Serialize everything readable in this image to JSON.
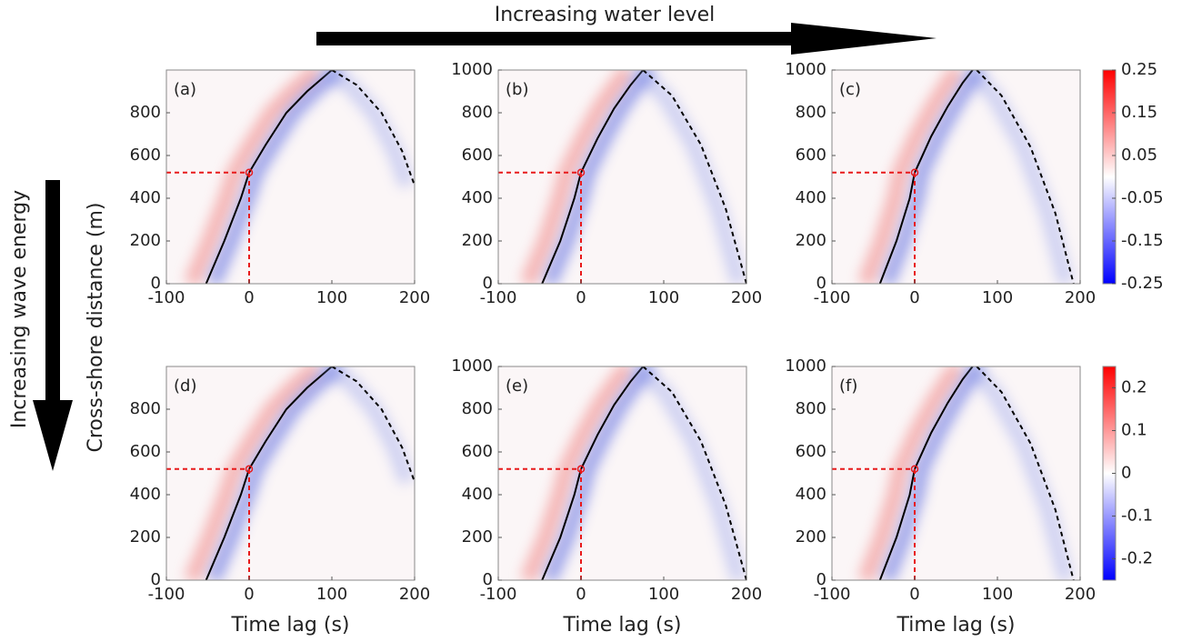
{
  "figure": {
    "top_arrow_label": "Increasing water level",
    "left_arrow_label": "Increasing wave energy",
    "ylabel": "Cross-shore distance (m)"
  },
  "colorbars": [
    {
      "clim": [
        -0.25,
        0.25
      ],
      "ticks": [
        0.25,
        0.15,
        0.05,
        -0.05,
        -0.15,
        -0.25
      ],
      "colors": [
        "#0000ff",
        "#ffffff",
        "#ff0000"
      ]
    },
    {
      "clim": [
        -0.25,
        0.25
      ],
      "ticks": [
        0.2,
        0.1,
        0,
        -0.1,
        -0.2
      ],
      "colors": [
        "#0000ff",
        "#ffffff",
        "#ff0000"
      ]
    }
  ],
  "chart_data": [
    {
      "type": "heatmap",
      "panel_label": "(a)",
      "xlim": [
        -100,
        200
      ],
      "xticks": [
        -100,
        0,
        100,
        200
      ],
      "ylim": [
        0,
        1000
      ],
      "yticks": [
        0,
        200,
        400,
        600,
        800
      ],
      "lines": [
        {
          "style": "solid",
          "color": "#000000",
          "x": [
            -52,
            -30,
            -10,
            0,
            20,
            45,
            70,
            100
          ],
          "y": [
            0,
            200,
            400,
            520,
            650,
            800,
            900,
            1000
          ]
        },
        {
          "style": "dashed",
          "color": "#000000",
          "x": [
            100,
            130,
            160,
            185,
            200
          ],
          "y": [
            1000,
            930,
            800,
            620,
            460
          ]
        }
      ],
      "marker": {
        "x": 0,
        "y": 520,
        "color": "#e8191a"
      }
    },
    {
      "type": "heatmap",
      "panel_label": "(b)",
      "xlim": [
        -100,
        200
      ],
      "xticks": [
        -100,
        0,
        100,
        200
      ],
      "ylim": [
        0,
        1000
      ],
      "yticks": [
        0,
        200,
        400,
        600,
        800,
        1000
      ],
      "lines": [
        {
          "style": "solid",
          "color": "#000000",
          "x": [
            -47,
            -25,
            -8,
            0,
            20,
            40,
            60,
            75
          ],
          "y": [
            0,
            200,
            400,
            520,
            680,
            820,
            930,
            1000
          ]
        },
        {
          "style": "dashed",
          "color": "#000000",
          "x": [
            75,
            110,
            145,
            175,
            200
          ],
          "y": [
            1000,
            880,
            650,
            350,
            0
          ]
        }
      ],
      "marker": {
        "x": 0,
        "y": 520,
        "color": "#e8191a"
      }
    },
    {
      "type": "heatmap",
      "panel_label": "(c)",
      "xlim": [
        -100,
        200
      ],
      "xticks": [
        -100,
        0,
        100,
        200
      ],
      "ylim": [
        0,
        1000
      ],
      "yticks": [
        0,
        200,
        400,
        600,
        800,
        1000
      ],
      "lines": [
        {
          "style": "solid",
          "color": "#000000",
          "x": [
            -42,
            -22,
            -6,
            0,
            20,
            40,
            58,
            70
          ],
          "y": [
            0,
            200,
            400,
            520,
            690,
            830,
            940,
            1000
          ]
        },
        {
          "style": "dashed",
          "color": "#000000",
          "x": [
            75,
            105,
            140,
            170,
            192
          ],
          "y": [
            1000,
            880,
            640,
            330,
            0
          ]
        }
      ],
      "marker": {
        "x": 0,
        "y": 520,
        "color": "#e8191a"
      }
    },
    {
      "type": "heatmap",
      "panel_label": "(d)",
      "xlim": [
        -100,
        200
      ],
      "xticks": [
        -100,
        0,
        100,
        200
      ],
      "ylim": [
        0,
        1000
      ],
      "yticks": [
        0,
        200,
        400,
        600,
        800
      ],
      "xlabel": "Time lag (s)",
      "lines": [
        {
          "style": "solid",
          "color": "#000000",
          "x": [
            -52,
            -30,
            -10,
            0,
            20,
            45,
            70,
            100
          ],
          "y": [
            0,
            200,
            400,
            520,
            650,
            800,
            900,
            1000
          ]
        },
        {
          "style": "dashed",
          "color": "#000000",
          "x": [
            100,
            130,
            160,
            185,
            200
          ],
          "y": [
            1000,
            930,
            800,
            620,
            460
          ]
        }
      ],
      "marker": {
        "x": 0,
        "y": 520,
        "color": "#e8191a"
      }
    },
    {
      "type": "heatmap",
      "panel_label": "(e)",
      "xlim": [
        -100,
        200
      ],
      "xticks": [
        -100,
        0,
        100,
        200
      ],
      "ylim": [
        0,
        1000
      ],
      "yticks": [
        0,
        200,
        400,
        600,
        800,
        1000
      ],
      "xlabel": "Time lag (s)",
      "lines": [
        {
          "style": "solid",
          "color": "#000000",
          "x": [
            -47,
            -25,
            -8,
            0,
            20,
            40,
            60,
            75
          ],
          "y": [
            0,
            200,
            400,
            520,
            680,
            820,
            930,
            1000
          ]
        },
        {
          "style": "dashed",
          "color": "#000000",
          "x": [
            75,
            110,
            145,
            175,
            200
          ],
          "y": [
            1000,
            880,
            650,
            350,
            0
          ]
        }
      ],
      "marker": {
        "x": 0,
        "y": 520,
        "color": "#e8191a"
      }
    },
    {
      "type": "heatmap",
      "panel_label": "(f)",
      "xlim": [
        -100,
        200
      ],
      "xticks": [
        -100,
        0,
        100,
        200
      ],
      "ylim": [
        0,
        1000
      ],
      "yticks": [
        0,
        200,
        400,
        600,
        800,
        1000
      ],
      "xlabel": "Time lag (s)",
      "lines": [
        {
          "style": "solid",
          "color": "#000000",
          "x": [
            -42,
            -22,
            -6,
            0,
            20,
            40,
            58,
            70
          ],
          "y": [
            0,
            200,
            400,
            520,
            690,
            830,
            940,
            1000
          ]
        },
        {
          "style": "dashed",
          "color": "#000000",
          "x": [
            75,
            105,
            140,
            170,
            192
          ],
          "y": [
            1000,
            880,
            640,
            330,
            0
          ]
        }
      ],
      "marker": {
        "x": 0,
        "y": 520,
        "color": "#e8191a"
      }
    }
  ]
}
